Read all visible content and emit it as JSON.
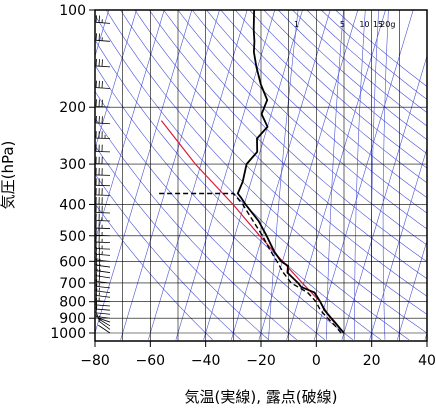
{
  "chart_data": {
    "type": "line",
    "xlabel": "気温(実線), 露点(破線)",
    "ylabel": "気圧(hPa)",
    "xlim": [
      -80,
      40
    ],
    "ylim": [
      1050,
      100
    ],
    "y_scale": "log",
    "grid": true,
    "x_ticks": [
      -80,
      -60,
      -40,
      -20,
      0,
      20,
      40
    ],
    "x_tick_labels": [
      "−80",
      "−60",
      "−40",
      "−20",
      "0",
      "20",
      "40"
    ],
    "y_ticks": [
      100,
      200,
      300,
      400,
      500,
      600,
      700,
      800,
      900,
      1000
    ],
    "y_tick_labels": [
      "100",
      "200",
      "300",
      "400",
      "500",
      "600",
      "700",
      "800",
      "900",
      "1000"
    ],
    "mixing_ratio_labels": [
      "1",
      "5",
      "10",
      "15",
      "20g"
    ],
    "colors": {
      "temperature": "#000000",
      "dewpoint": "#000000",
      "parcel": "#dd1a3c",
      "reference_lines": "#4a52d6",
      "grid": "#000000",
      "wind": "#000000"
    },
    "series": [
      {
        "style": "solid",
        "points": [
          {
            "p": 1000,
            "t": 10.0
          },
          {
            "p": 975,
            "t": 8.5
          },
          {
            "p": 950,
            "t": 7.0
          },
          {
            "p": 925,
            "t": 5.5
          },
          {
            "p": 900,
            "t": 3.8
          },
          {
            "p": 850,
            "t": 0.5
          },
          {
            "p": 800,
            "t": -2.0
          },
          {
            "p": 750,
            "t": -5.0
          },
          {
            "p": 720,
            "t": -10.5
          },
          {
            "p": 700,
            "t": -12.0
          },
          {
            "p": 680,
            "t": -14.0
          },
          {
            "p": 650,
            "t": -17.0
          },
          {
            "p": 620,
            "t": -17.5
          },
          {
            "p": 600,
            "t": -20.5
          },
          {
            "p": 560,
            "t": -24.0
          },
          {
            "p": 500,
            "t": -28.5
          },
          {
            "p": 450,
            "t": -33.0
          },
          {
            "p": 400,
            "t": -39.5
          },
          {
            "p": 380,
            "t": -42.0
          },
          {
            "p": 370,
            "t": -43.5
          },
          {
            "p": 340,
            "t": -43.0
          },
          {
            "p": 300,
            "t": -43.5
          },
          {
            "p": 275,
            "t": -41.0
          },
          {
            "p": 250,
            "t": -42.5
          },
          {
            "p": 230,
            "t": -40.0
          },
          {
            "p": 210,
            "t": -43.5
          },
          {
            "p": 190,
            "t": -43.0
          },
          {
            "p": 170,
            "t": -47.0
          },
          {
            "p": 150,
            "t": -50.5
          },
          {
            "p": 135,
            "t": -53.0
          },
          {
            "p": 125,
            "t": -54.0
          },
          {
            "p": 115,
            "t": -55.5
          },
          {
            "p": 100,
            "t": -57.5
          }
        ]
      },
      {
        "style": "dashed",
        "points": [
          {
            "p": 1000,
            "t": 9.0
          },
          {
            "p": 950,
            "t": 6.0
          },
          {
            "p": 900,
            "t": 2.5
          },
          {
            "p": 850,
            "t": -1.0
          },
          {
            "p": 800,
            "t": -3.5
          },
          {
            "p": 750,
            "t": -7.5
          },
          {
            "p": 700,
            "t": -14.5
          },
          {
            "p": 650,
            "t": -18.5
          },
          {
            "p": 600,
            "t": -22.0
          },
          {
            "p": 550,
            "t": -26.0
          },
          {
            "p": 500,
            "t": -30.0
          },
          {
            "p": 450,
            "t": -35.0
          },
          {
            "p": 400,
            "t": -40.5
          },
          {
            "p": 370,
            "t": -45.0
          },
          {
            "p": 370,
            "t": -72.0
          }
        ]
      },
      {
        "style": "parcel",
        "points": [
          {
            "p": 1000,
            "t": 10.0
          },
          {
            "p": 900,
            "t": 3.5
          },
          {
            "p": 800,
            "t": -2.0
          },
          {
            "p": 700,
            "t": -10.5
          },
          {
            "p": 600,
            "t": -20.0
          },
          {
            "p": 500,
            "t": -31.0
          },
          {
            "p": 400,
            "t": -44.0
          },
          {
            "p": 300,
            "t": -62.0
          },
          {
            "p": 220,
            "t": -79.0
          }
        ]
      }
    ],
    "wind_barbs": [
      {
        "p": 1000,
        "u": 3,
        "v": 2
      },
      {
        "p": 975,
        "u": 4,
        "v": 3
      },
      {
        "p": 950,
        "u": 5,
        "v": 3
      },
      {
        "p": 925,
        "u": 6,
        "v": 2
      },
      {
        "p": 900,
        "u": 8,
        "v": 1
      },
      {
        "p": 875,
        "u": 10,
        "v": 1
      },
      {
        "p": 850,
        "u": 12,
        "v": 1
      },
      {
        "p": 825,
        "u": 13,
        "v": 1
      },
      {
        "p": 800,
        "u": 15,
        "v": 1
      },
      {
        "p": 775,
        "u": 16,
        "v": 2
      },
      {
        "p": 750,
        "u": 17,
        "v": 2
      },
      {
        "p": 725,
        "u": 18,
        "v": 2
      },
      {
        "p": 700,
        "u": 20,
        "v": 2
      },
      {
        "p": 675,
        "u": 20,
        "v": 3
      },
      {
        "p": 650,
        "u": 22,
        "v": 3
      },
      {
        "p": 625,
        "u": 22,
        "v": 3
      },
      {
        "p": 600,
        "u": 24,
        "v": 2
      },
      {
        "p": 575,
        "u": 25,
        "v": 2
      },
      {
        "p": 550,
        "u": 26,
        "v": 1
      },
      {
        "p": 525,
        "u": 25,
        "v": 1
      },
      {
        "p": 500,
        "u": 27,
        "v": 1
      },
      {
        "p": 475,
        "u": 28,
        "v": 1
      },
      {
        "p": 450,
        "u": 28,
        "v": 1
      },
      {
        "p": 425,
        "u": 30,
        "v": 1
      },
      {
        "p": 400,
        "u": 30,
        "v": 1
      },
      {
        "p": 375,
        "u": 32,
        "v": 1
      },
      {
        "p": 350,
        "u": 32,
        "v": 1
      },
      {
        "p": 325,
        "u": 33,
        "v": 1
      },
      {
        "p": 300,
        "u": 34,
        "v": 1
      },
      {
        "p": 275,
        "u": 34,
        "v": 1
      },
      {
        "p": 250,
        "u": 35,
        "v": 1
      },
      {
        "p": 225,
        "u": 34,
        "v": 2
      },
      {
        "p": 200,
        "u": 33,
        "v": 2
      },
      {
        "p": 175,
        "u": 32,
        "v": 2
      },
      {
        "p": 150,
        "u": 30,
        "v": 2
      },
      {
        "p": 125,
        "u": 28,
        "v": 2
      },
      {
        "p": 110,
        "u": 26,
        "v": 2
      },
      {
        "p": 100,
        "u": 25,
        "v": 2
      }
    ]
  }
}
